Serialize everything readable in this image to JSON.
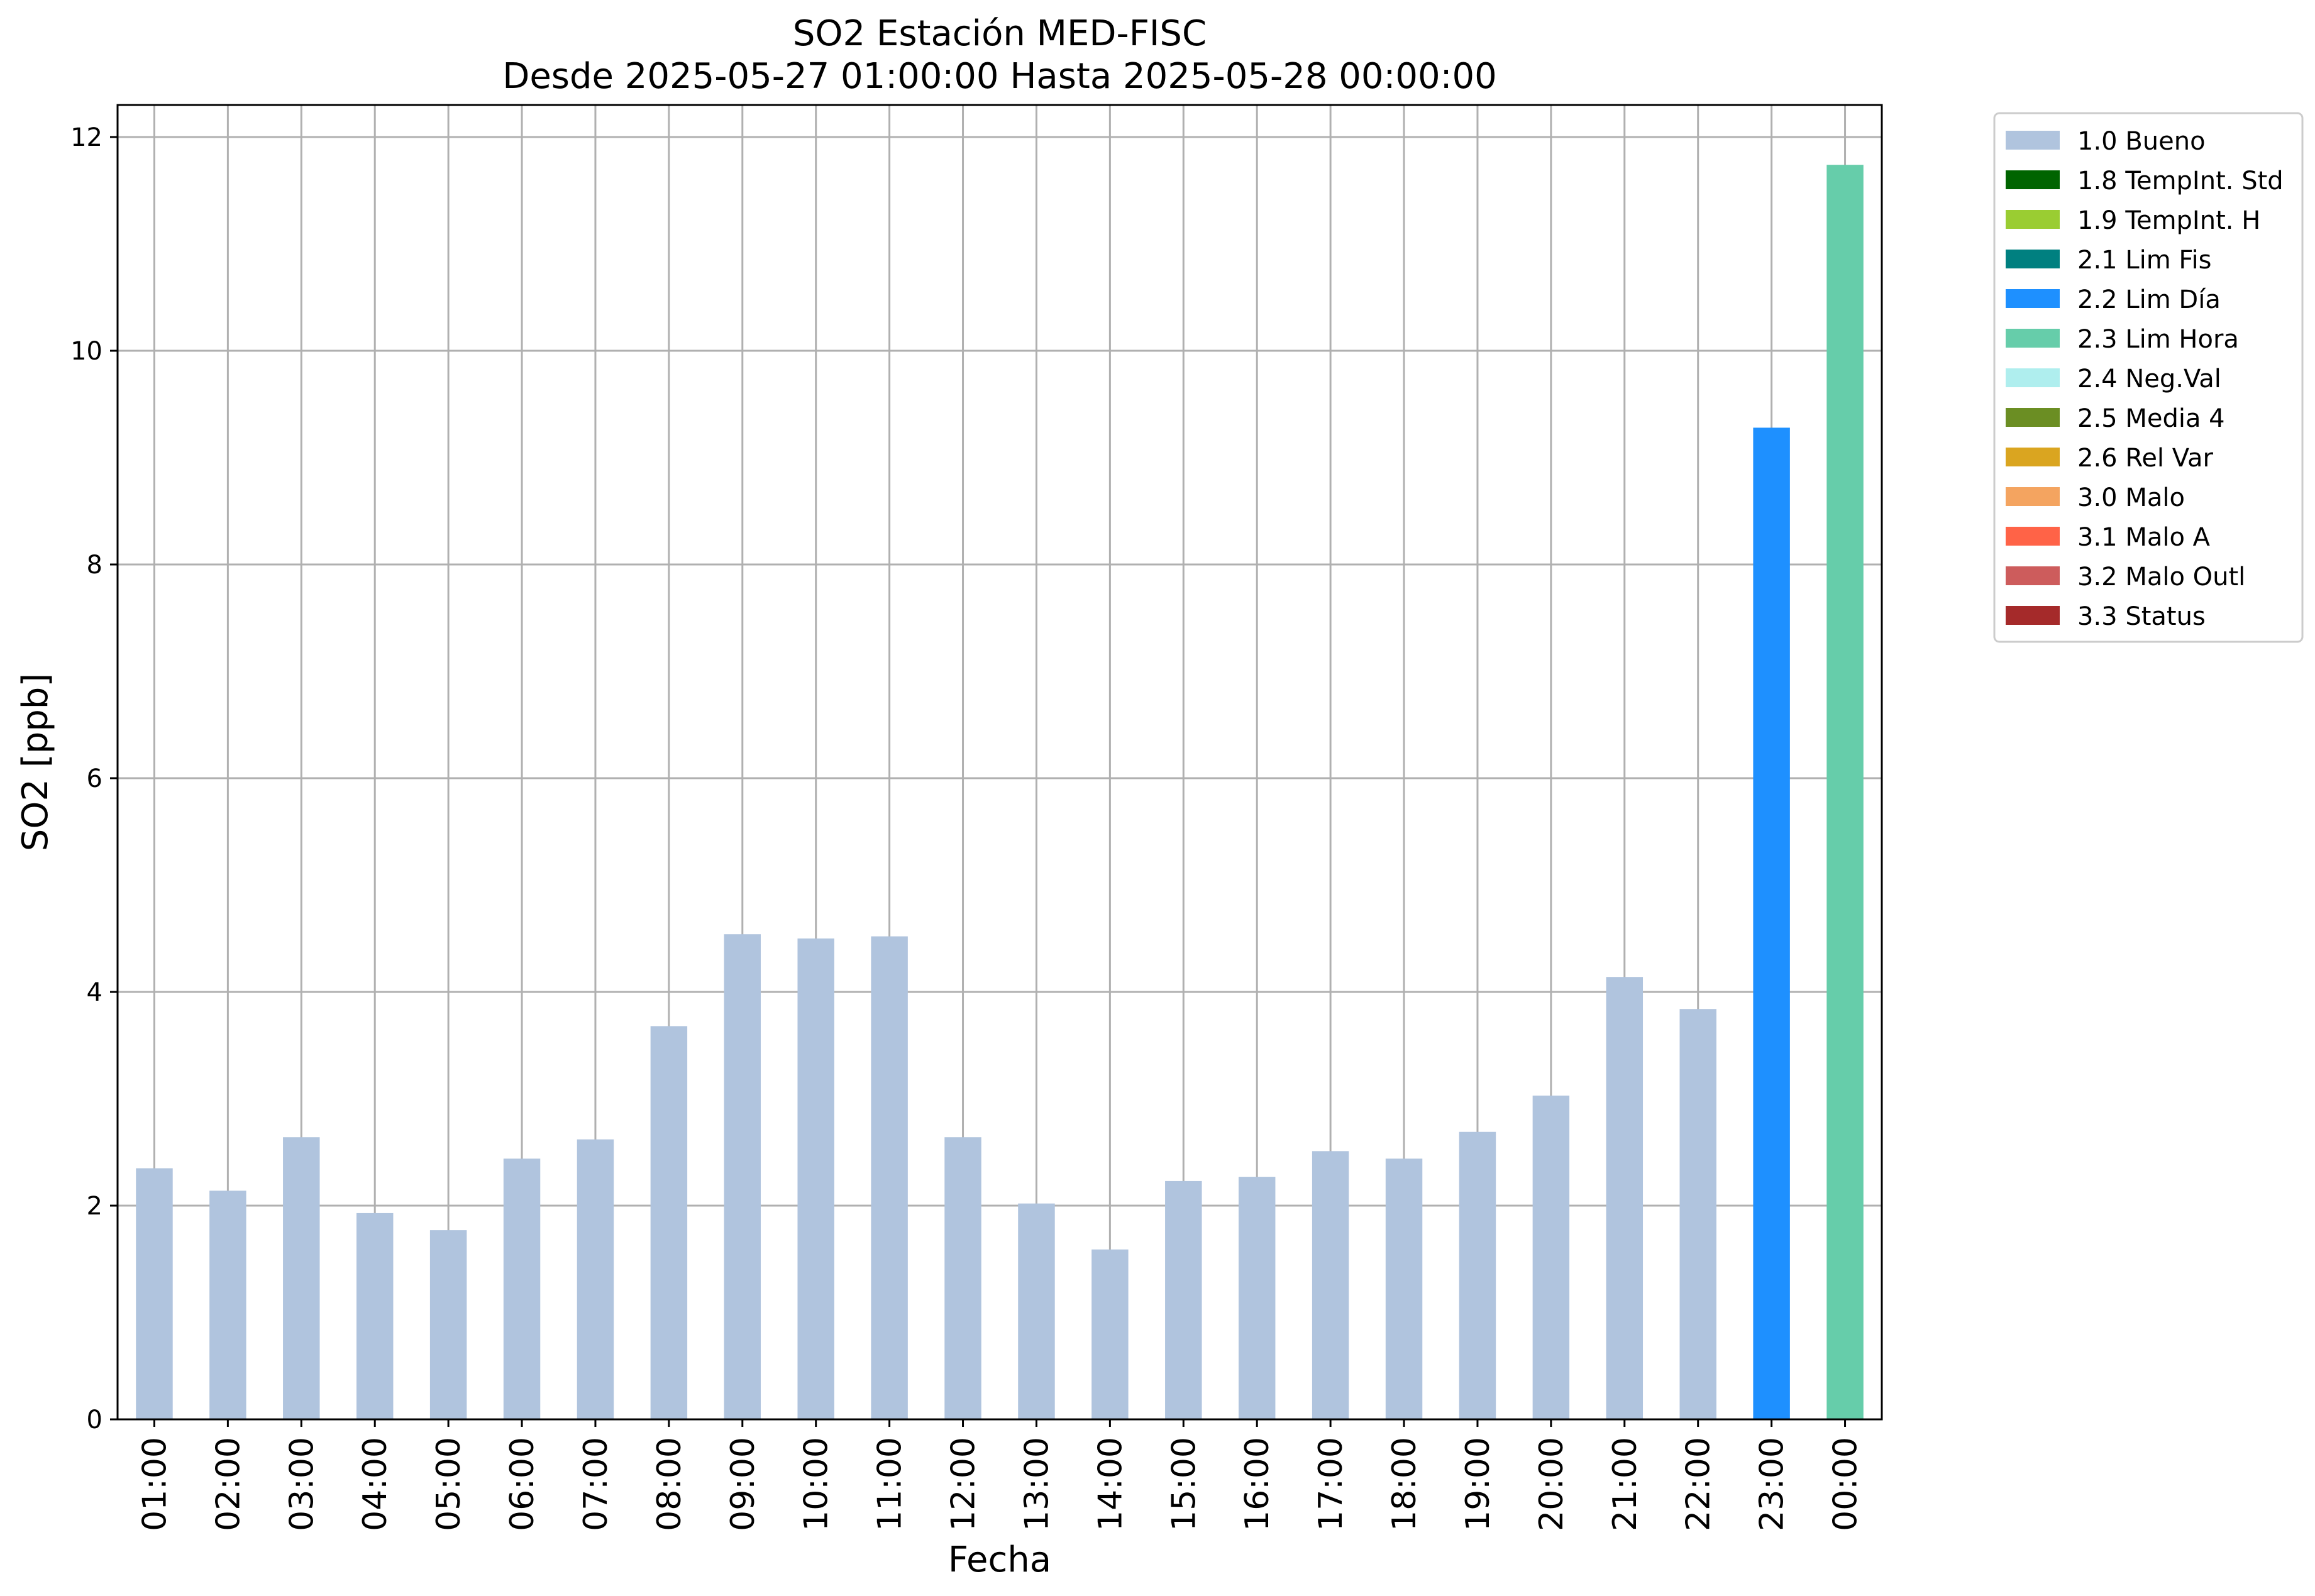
{
  "chart_data": {
    "type": "bar",
    "title": "SO2 Estación MED-FISC",
    "subtitle": "Desde 2025-05-27 01:00:00 Hasta 2025-05-28 00:00:00",
    "xlabel": "Fecha",
    "ylabel": "SO2 [ppb]",
    "ylim": [
      0,
      12.3
    ],
    "yticks": [
      0,
      2,
      4,
      6,
      8,
      10,
      12
    ],
    "grid": true,
    "legend_position": "outside-right",
    "categories": [
      "01:00",
      "02:00",
      "03:00",
      "04:00",
      "05:00",
      "06:00",
      "07:00",
      "08:00",
      "09:00",
      "10:00",
      "11:00",
      "12:00",
      "13:00",
      "14:00",
      "15:00",
      "16:00",
      "17:00",
      "18:00",
      "19:00",
      "20:00",
      "21:00",
      "22:00",
      "23:00",
      "00:00"
    ],
    "values": [
      2.35,
      2.14,
      2.64,
      1.93,
      1.77,
      2.44,
      2.62,
      3.68,
      4.54,
      4.5,
      4.52,
      2.64,
      2.02,
      1.59,
      2.23,
      2.27,
      2.51,
      2.44,
      2.69,
      3.03,
      4.14,
      3.84,
      9.28,
      11.74
    ],
    "flags": [
      "1.0 Bueno",
      "1.0 Bueno",
      "1.0 Bueno",
      "1.0 Bueno",
      "1.0 Bueno",
      "1.0 Bueno",
      "1.0 Bueno",
      "1.0 Bueno",
      "1.0 Bueno",
      "1.0 Bueno",
      "1.0 Bueno",
      "1.0 Bueno",
      "1.0 Bueno",
      "1.0 Bueno",
      "1.0 Bueno",
      "1.0 Bueno",
      "1.0 Bueno",
      "1.0 Bueno",
      "1.0 Bueno",
      "1.0 Bueno",
      "1.0 Bueno",
      "1.0 Bueno",
      "2.2 Lim Día",
      "2.3 Lim Hora"
    ],
    "legend": [
      {
        "label": "1.0 Bueno",
        "color": "#b0c4de"
      },
      {
        "label": "1.8 TempInt. Std",
        "color": "#006400"
      },
      {
        "label": "1.9 TempInt. H",
        "color": "#9acd32"
      },
      {
        "label": "2.1 Lim Fis",
        "color": "#008080"
      },
      {
        "label": "2.2 Lim Día",
        "color": "#1e90ff"
      },
      {
        "label": "2.3 Lim Hora",
        "color": "#66cdaa"
      },
      {
        "label": "2.4 Neg.Val",
        "color": "#afeeee"
      },
      {
        "label": "2.5 Media 4",
        "color": "#6b8e23"
      },
      {
        "label": "2.6 Rel Var",
        "color": "#daa520"
      },
      {
        "label": "3.0 Malo",
        "color": "#f4a460"
      },
      {
        "label": "3.1 Malo A",
        "color": "#ff6347"
      },
      {
        "label": "3.2 Malo Outl",
        "color": "#cd5c5c"
      },
      {
        "label": "3.3 Status",
        "color": "#a52a2a"
      }
    ]
  }
}
